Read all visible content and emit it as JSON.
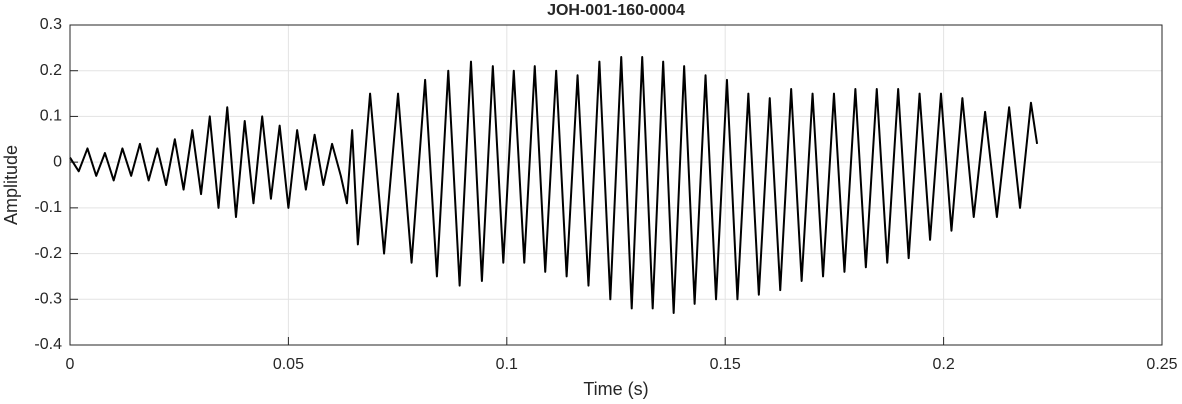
{
  "chart_data": {
    "type": "line",
    "title": "JOH-001-160-0004",
    "x_label": "Time (s)",
    "y_label": "Amplitude",
    "xlim": [
      0,
      0.25
    ],
    "xticks": [
      0,
      0.05,
      0.1,
      0.15,
      0.2,
      0.25
    ],
    "ylim": [
      -0.4,
      0.3
    ],
    "yticks": [
      -0.4,
      -0.3,
      -0.2,
      -0.1,
      0,
      0.1,
      0.2,
      0.3
    ],
    "grid": true,
    "series": [
      {
        "color": "#000000",
        "x": [
          0,
          0.002,
          0.004,
          0.006,
          0.008,
          0.01,
          0.012,
          0.014,
          0.016,
          0.018,
          0.02,
          0.022,
          0.024,
          0.026,
          0.028,
          0.03,
          0.032,
          0.034,
          0.036,
          0.038,
          0.04,
          0.042,
          0.044,
          0.046,
          0.048,
          0.05,
          0.052,
          0.054,
          0.056,
          0.058,
          0.06,
          0.062,
          0.0634,
          0.0646,
          0.0659,
          0.0687,
          0.0719,
          0.0751,
          0.0782,
          0.0813,
          0.084,
          0.0866,
          0.0892,
          0.0918,
          0.0943,
          0.0968,
          0.0992,
          0.1016,
          0.104,
          0.1064,
          0.1088,
          0.1113,
          0.1137,
          0.1162,
          0.1187,
          0.1212,
          0.1237,
          0.1262,
          0.1286,
          0.131,
          0.1334,
          0.1358,
          0.1382,
          0.1406,
          0.143,
          0.1455,
          0.1479,
          0.1504,
          0.1528,
          0.1553,
          0.1577,
          0.1602,
          0.1626,
          0.1651,
          0.1675,
          0.17,
          0.1724,
          0.1749,
          0.1773,
          0.1798,
          0.1822,
          0.1847,
          0.1871,
          0.1896,
          0.192,
          0.1945,
          0.1969,
          0.1994,
          0.2018,
          0.2043,
          0.2069,
          0.2095,
          0.2122,
          0.215,
          0.2175,
          0.22,
          0.2214
        ],
        "values": [
          0.01,
          -0.02,
          0.03,
          -0.03,
          0.02,
          -0.04,
          0.03,
          -0.03,
          0.04,
          -0.04,
          0.03,
          -0.05,
          0.05,
          -0.06,
          0.07,
          -0.07,
          0.1,
          -0.1,
          0.12,
          -0.12,
          0.09,
          -0.09,
          0.1,
          -0.08,
          0.08,
          -0.1,
          0.07,
          -0.06,
          0.06,
          -0.05,
          0.04,
          -0.03,
          -0.09,
          0.07,
          -0.18,
          0.15,
          -0.2,
          0.15,
          -0.22,
          0.18,
          -0.25,
          0.2,
          -0.27,
          0.22,
          -0.26,
          0.21,
          -0.22,
          0.2,
          -0.22,
          0.21,
          -0.24,
          0.2,
          -0.25,
          0.19,
          -0.27,
          0.22,
          -0.3,
          0.23,
          -0.32,
          0.23,
          -0.32,
          0.22,
          -0.33,
          0.21,
          -0.31,
          0.19,
          -0.3,
          0.18,
          -0.3,
          0.15,
          -0.29,
          0.14,
          -0.28,
          0.16,
          -0.26,
          0.15,
          -0.25,
          0.15,
          -0.24,
          0.16,
          -0.23,
          0.16,
          -0.22,
          0.16,
          -0.21,
          0.15,
          -0.17,
          0.15,
          -0.15,
          0.14,
          -0.12,
          0.11,
          -0.12,
          0.12,
          -0.1,
          0.13,
          0.04
        ]
      }
    ]
  }
}
